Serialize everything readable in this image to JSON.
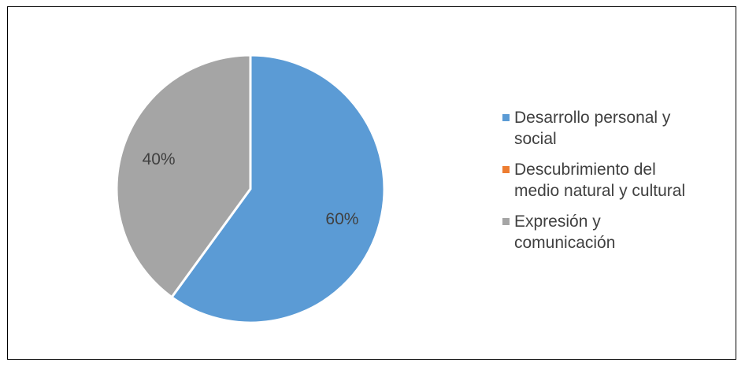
{
  "chart_data": {
    "type": "pie",
    "categories": [
      "Desarrollo personal y social",
      "Descubrimiento del medio natural y cultural",
      "Expresión y comunicación"
    ],
    "values": [
      60,
      0,
      40
    ],
    "data_labels": [
      "60%",
      "",
      "40%"
    ],
    "colors": [
      "#5B9BD5",
      "#ED7D31",
      "#A5A5A5"
    ],
    "legend": {
      "placement": "right",
      "entries": [
        {
          "line1": "Desarrollo personal y",
          "line2": "social"
        },
        {
          "line1": "Descubrimiento del",
          "line2": "medio natural y cultural"
        },
        {
          "line1": "Expresión y",
          "line2": "comunicación"
        }
      ]
    }
  }
}
